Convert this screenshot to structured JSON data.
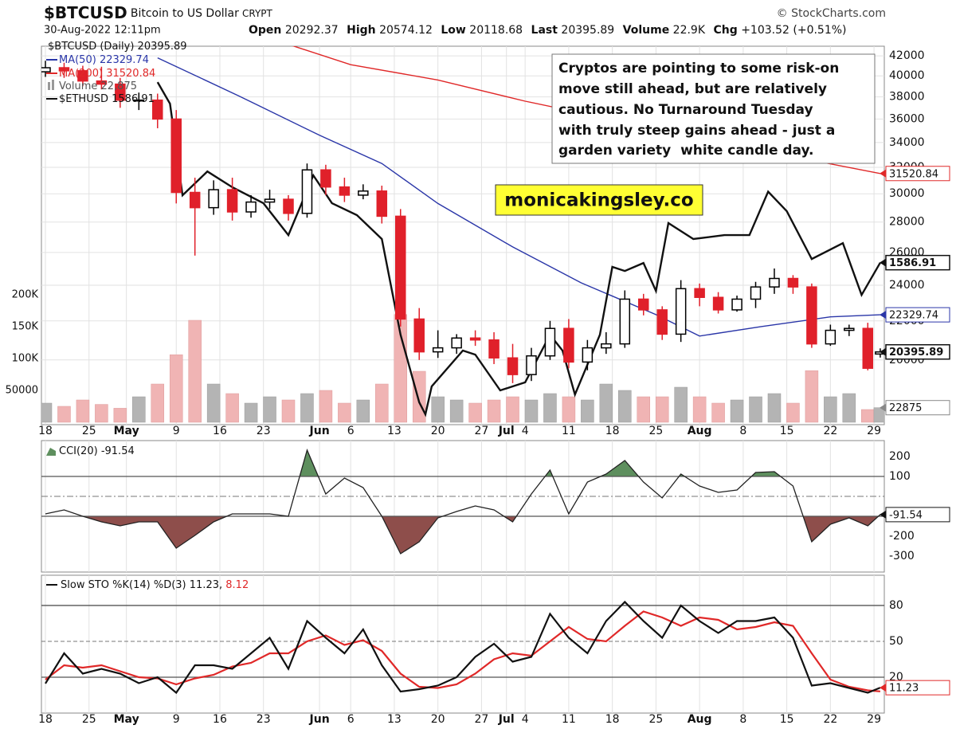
{
  "header": {
    "symbol": "$BTCUSD",
    "name": "Bitcoin to US Dollar",
    "exchange": "CRYPT",
    "source": "© StockCharts.com",
    "timestamp": "30-Aug-2022 12:11pm",
    "labels": [
      "Open",
      "High",
      "Low",
      "Last",
      "Volume",
      "Chg"
    ],
    "volume": "22.9K",
    "change": "+103.52 (+0.51%)"
  },
  "annotations": {
    "comment": [
      "Cryptos are pointing to some risk-on",
      "move still ahead, but are relatively",
      "cautious. No Turnaround Tuesday",
      "with truly steep gains ahead - just a",
      "garden variety  white candle day."
    ],
    "watermark": "monicakingsley.co"
  },
  "chart_data": [
    {
      "type": "candlestick",
      "log_scale": true,
      "grid": true,
      "x": [
        0,
        3,
        6,
        9,
        12,
        15,
        18,
        21,
        24,
        27,
        30,
        33,
        36,
        39,
        42,
        45,
        48,
        51,
        54,
        57,
        60,
        63,
        66,
        69,
        72,
        75,
        78,
        81,
        84,
        87,
        90,
        93,
        96,
        99,
        102,
        105,
        108,
        111,
        114,
        117,
        120,
        123,
        126,
        129,
        132,
        134
      ],
      "xlim": [
        -0.64,
        134.65
      ],
      "xticks": [
        {
          "value": 0,
          "label": "18"
        },
        {
          "value": 7,
          "label": "25"
        },
        {
          "value": 13,
          "label": "May"
        },
        {
          "value": 21,
          "label": "9"
        },
        {
          "value": 28,
          "label": "16"
        },
        {
          "value": 35,
          "label": "23"
        },
        {
          "value": 44,
          "label": "Jun"
        },
        {
          "value": 49,
          "label": "6"
        },
        {
          "value": 56,
          "label": "13"
        },
        {
          "value": 63,
          "label": "20"
        },
        {
          "value": 70,
          "label": "27"
        },
        {
          "value": 74,
          "label": "Jul"
        },
        {
          "value": 77,
          "label": "4"
        },
        {
          "value": 84,
          "label": "11"
        },
        {
          "value": 91,
          "label": "18"
        },
        {
          "value": 98,
          "label": "25"
        },
        {
          "value": 105,
          "label": "Aug"
        },
        {
          "value": 112,
          "label": "8"
        },
        {
          "value": 119,
          "label": "15"
        },
        {
          "value": 126,
          "label": "22"
        },
        {
          "value": 133,
          "label": "29"
        }
      ],
      "ylim": [
        17080,
        43000
      ],
      "yticks": [
        20000,
        22000,
        24000,
        26000,
        28000,
        30000,
        32000,
        34000,
        36000,
        38000,
        40000,
        42000
      ],
      "candles": {
        "name": "$BTCUSD (Daily)",
        "up_color": "#000000",
        "down_color": "#e0202a",
        "open": [
          40400,
          40800,
          40500,
          39500,
          39200,
          37700,
          37700,
          36000,
          30100,
          29000,
          30300,
          28700,
          29400,
          29600,
          28600,
          31800,
          30500,
          29900,
          30200,
          28400,
          22100,
          20400,
          20600,
          21100,
          21000,
          20100,
          19300,
          20200,
          21600,
          19900,
          20600,
          20800,
          23200,
          22600,
          21300,
          23800,
          23300,
          22600,
          23200,
          23900,
          24400,
          23900,
          20800,
          21500,
          21600,
          20292.37
        ],
        "high": [
          41500,
          41300,
          41000,
          40900,
          39800,
          38400,
          38300,
          36800,
          31200,
          31000,
          31200,
          29900,
          30300,
          29900,
          32300,
          32200,
          31200,
          30700,
          30600,
          28900,
          22700,
          21500,
          21300,
          21500,
          21400,
          20800,
          20600,
          22000,
          22100,
          21000,
          21400,
          23700,
          23500,
          22800,
          24300,
          24100,
          23600,
          23400,
          24200,
          25000,
          24600,
          24100,
          21800,
          21800,
          21900,
          20574.12
        ],
        "low": [
          39900,
          39800,
          39000,
          38700,
          37000,
          36800,
          35200,
          29300,
          25800,
          28500,
          28100,
          28300,
          28900,
          28100,
          28300,
          29900,
          29400,
          29600,
          27900,
          21700,
          20000,
          20100,
          20300,
          20700,
          19800,
          18900,
          19000,
          20000,
          19600,
          19500,
          20300,
          20600,
          22300,
          21000,
          20900,
          22800,
          22400,
          22500,
          22700,
          23500,
          23500,
          20600,
          20700,
          21200,
          19500,
          20118.68
        ],
        "close": [
          40800,
          40500,
          39500,
          39200,
          37700,
          37700,
          36000,
          30100,
          29000,
          30300,
          28700,
          29400,
          29600,
          28600,
          31800,
          30500,
          29900,
          30200,
          28400,
          22100,
          20400,
          20600,
          21100,
          21000,
          20100,
          19300,
          20200,
          21600,
          19900,
          20600,
          20800,
          23200,
          22600,
          21300,
          23800,
          23300,
          22600,
          23200,
          23900,
          24400,
          23900,
          20800,
          21500,
          21600,
          19600,
          20395.89
        ]
      },
      "overlays": [
        {
          "name": "MA(200)",
          "color": "#e02828",
          "x": [
            35,
            49,
            63,
            77,
            91,
            105,
            119,
            134
          ],
          "values": [
            44060,
            41100,
            39600,
            37600,
            35960,
            34440,
            32940,
            31520.84
          ]
        },
        {
          "name": "MA(50)",
          "color": "#2a36a8",
          "x": [
            18,
            31,
            44,
            54,
            63,
            75,
            86,
            98,
            105,
            115,
            126,
            134
          ],
          "values": [
            41800,
            38100,
            34600,
            32300,
            29300,
            26350,
            24140,
            22340,
            21200,
            21700,
            22220,
            22329.74
          ]
        },
        {
          "name": "$ETHUSD",
          "color": "#111111",
          "axis": "y3",
          "x": [
            18,
            20,
            22,
            26,
            30,
            35,
            39,
            43,
            46,
            50,
            54,
            57,
            60,
            61,
            62,
            67,
            69,
            73,
            77,
            81,
            83,
            85,
            89,
            91,
            93,
            96,
            98,
            100,
            104,
            109,
            113,
            116,
            119,
            123,
            128,
            131,
            134
          ],
          "values": [
            2871,
            2675,
            1980,
            2141,
            2033,
            1929,
            1737,
            2114,
            1929,
            1855,
            1715,
            1252,
            1003,
            964,
            1057,
            1189,
            1173,
            1043,
            1071,
            1252,
            1189,
            1029,
            1252,
            1565,
            1544,
            1585,
            1446,
            1807,
            1715,
            1737,
            1737,
            2004,
            1879,
            1606,
            1692,
            1427,
            1586.91
          ]
        }
      ],
      "y3lim": [
        932,
        3231
      ],
      "volume": {
        "name": "Volume",
        "axis": "y2",
        "up_color": "#b4b4b4",
        "down_color": "#f0b4b4",
        "legend_value_label": "22,875",
        "values": [
          30000,
          25000,
          35000,
          28000,
          22000,
          40000,
          60000,
          106000,
          160000,
          60000,
          45000,
          30000,
          40000,
          35000,
          45000,
          50000,
          30000,
          35000,
          60000,
          169000,
          80000,
          40000,
          35000,
          30000,
          35000,
          40000,
          35000,
          45000,
          40000,
          35000,
          60000,
          50000,
          40000,
          40000,
          55000,
          40000,
          30000,
          35000,
          40000,
          45000,
          30000,
          81000,
          40000,
          45000,
          20000,
          22875
        ]
      },
      "y2lim": [
        -3750,
        590000
      ],
      "y2ticks": [
        50000,
        {
          "value": 100000,
          "label": "100K"
        },
        {
          "value": 150000,
          "label": "150K"
        },
        {
          "value": 200000,
          "label": "200K"
        }
      ]
    },
    {
      "type": "line",
      "title": "CCI(20)",
      "x": [
        0,
        3,
        6,
        9,
        12,
        15,
        18,
        21,
        24,
        27,
        30,
        33,
        36,
        39,
        42,
        45,
        48,
        51,
        54,
        57,
        60,
        63,
        66,
        69,
        72,
        75,
        78,
        81,
        84,
        87,
        90,
        93,
        96,
        99,
        102,
        105,
        108,
        111,
        114,
        117,
        120,
        123,
        126,
        129,
        132,
        134
      ],
      "xlim": [
        -0.64,
        134.65
      ],
      "ylim": [
        -380,
        280
      ],
      "yticks": [
        200,
        100,
        -200,
        -300
      ],
      "reference_lines": [
        {
          "value": 100,
          "style": "solid",
          "fill_beyond": "#5e8f5e"
        },
        {
          "value": 0,
          "style": "dashdot"
        },
        {
          "value": -100,
          "style": "solid",
          "fill_beyond": "#8e4e4b"
        }
      ],
      "series": [
        {
          "color": "#222222",
          "values": [
            -88,
            -68,
            -100,
            -128,
            -148,
            -128,
            -128,
            -260,
            -196,
            -128,
            -88,
            -88,
            -88,
            -100,
            232,
            12,
            92,
            44,
            -100,
            -288,
            -228,
            -108,
            -76,
            -48,
            -68,
            -128,
            12,
            132,
            -88,
            72,
            112,
            180,
            72,
            -8,
            112,
            52,
            20,
            32,
            120,
            124,
            52,
            -228,
            -140,
            -108,
            -148,
            -91.54
          ]
        }
      ]
    },
    {
      "type": "line",
      "title": "Slow STO %K(14) %D(3)",
      "legend_separator": ",",
      "x": [
        0,
        3,
        6,
        9,
        12,
        15,
        18,
        21,
        24,
        27,
        30,
        33,
        36,
        39,
        42,
        45,
        48,
        51,
        54,
        57,
        60,
        63,
        66,
        69,
        72,
        75,
        78,
        81,
        84,
        87,
        90,
        93,
        96,
        99,
        102,
        105,
        108,
        111,
        114,
        117,
        120,
        123,
        126,
        129,
        132,
        134
      ],
      "xlim": [
        -0.64,
        134.65
      ],
      "ylim": [
        -10,
        105.3
      ],
      "yticks": [
        80,
        50,
        20
      ],
      "reference_lines": [
        {
          "value": 80,
          "style": "solid"
        },
        {
          "value": 50,
          "style": "dash"
        },
        {
          "value": 20,
          "style": "solid"
        }
      ],
      "series": [
        {
          "color": "#111111",
          "values": [
            14.7,
            40,
            23,
            27,
            23,
            15,
            20,
            7,
            30,
            30,
            27,
            40,
            53,
            27,
            67,
            53,
            40,
            60,
            30,
            8,
            10,
            13,
            20,
            37,
            48,
            33,
            37,
            73,
            53,
            40,
            67,
            83,
            67,
            53,
            80,
            67,
            57,
            67,
            67,
            70,
            53,
            13,
            15,
            11,
            7,
            11.23
          ]
        },
        {
          "color": "#e02828",
          "values": [
            18,
            30,
            28,
            30,
            25,
            20,
            19,
            14,
            19,
            22,
            29,
            32,
            40,
            40,
            50,
            55,
            47,
            51,
            42,
            23,
            12,
            11,
            14,
            23,
            35,
            40,
            38,
            50,
            62,
            52,
            50,
            63,
            75,
            70,
            63,
            70,
            68,
            60,
            62,
            66,
            63,
            40,
            18,
            12,
            9,
            8.12
          ]
        }
      ]
    }
  ]
}
